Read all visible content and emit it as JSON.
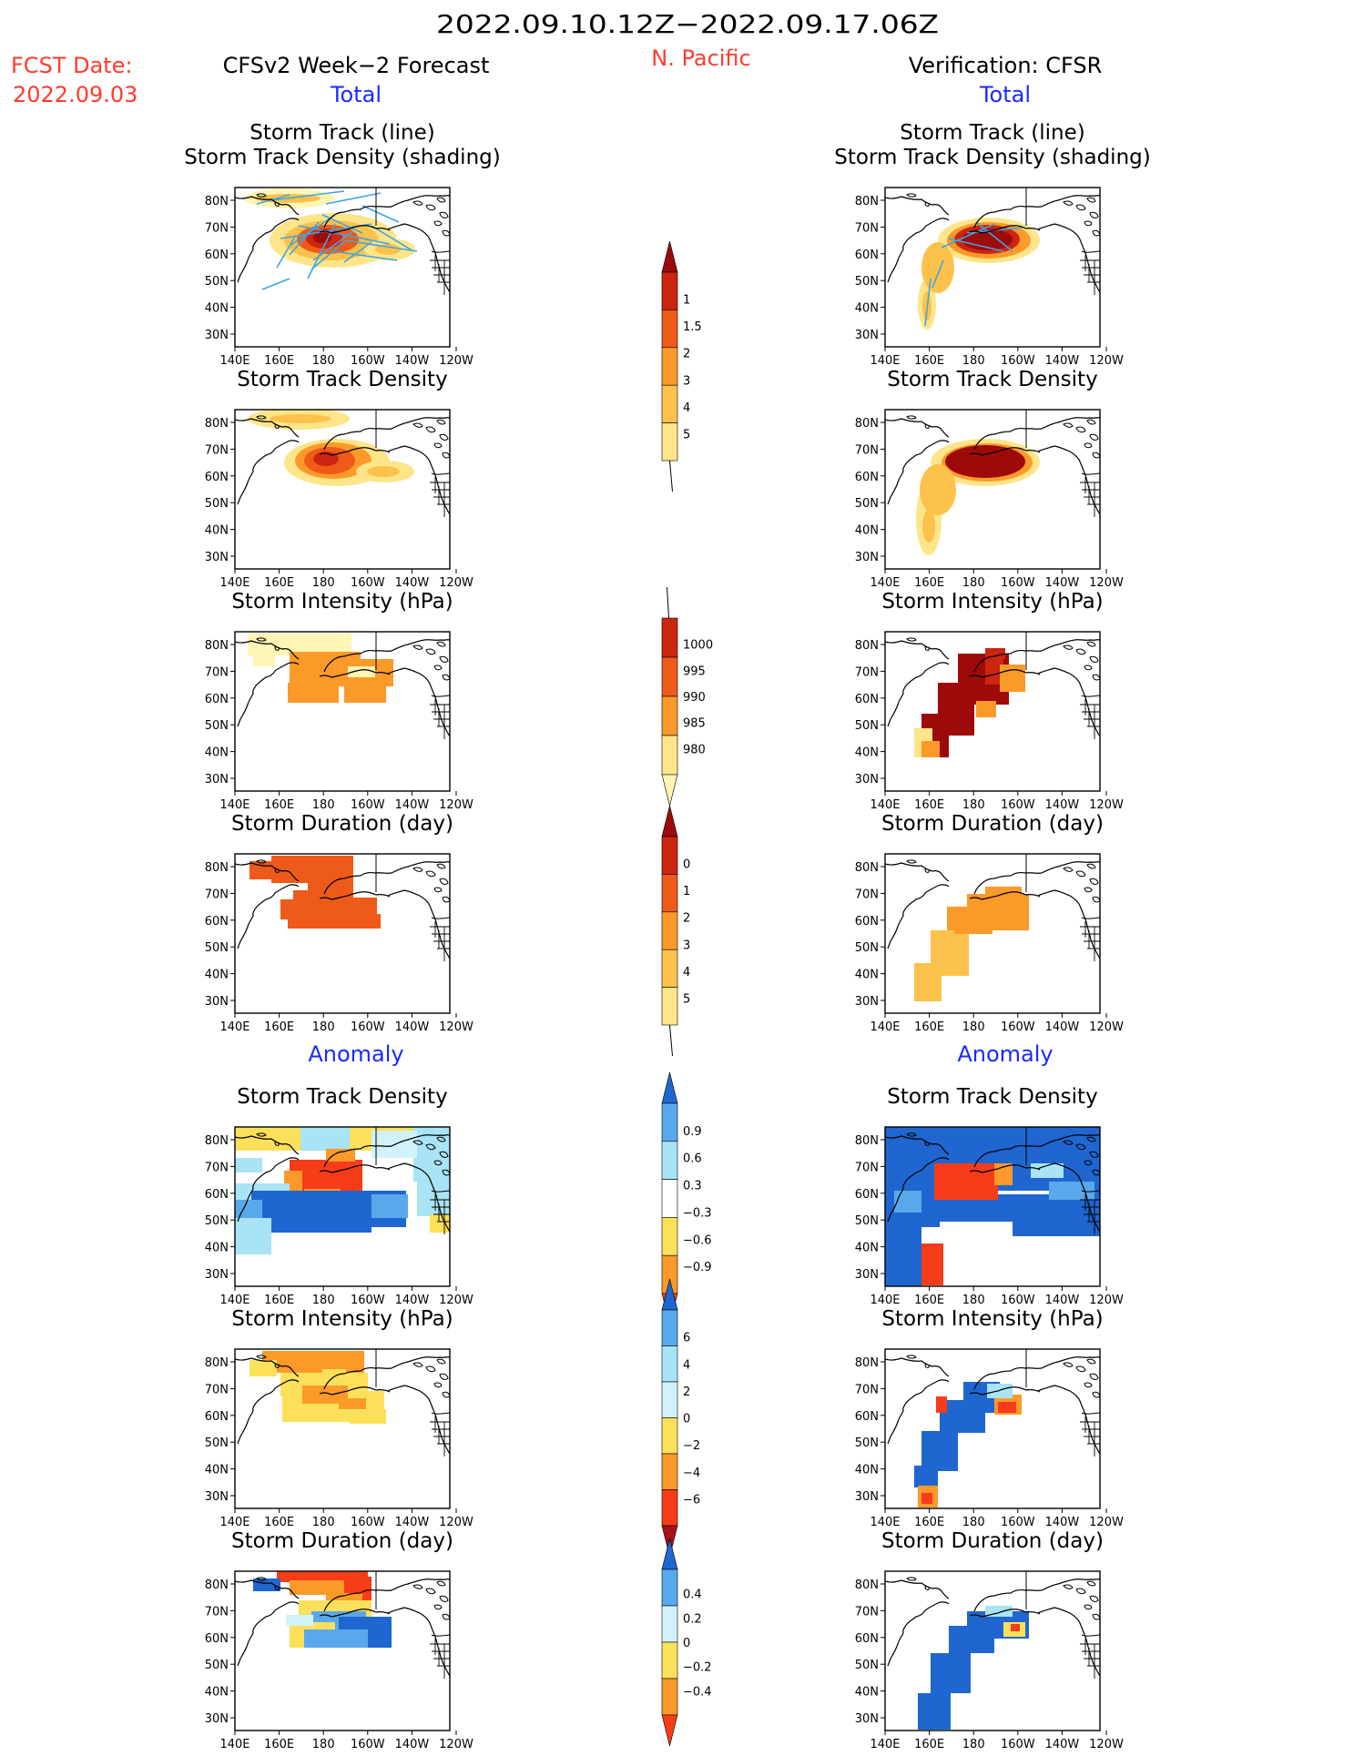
{
  "header": {
    "period": "2022.09.10.12Z−2022.09.17.06Z",
    "fcst_label": "FCST Date:",
    "fcst_date": "2022.09.03",
    "left_title": "CFSv2 Week−2 Forecast",
    "region": "N. Pacific",
    "right_title": "Verification: CFSR",
    "total_label": "Total",
    "anomaly_label": "Anomaly"
  },
  "axes": {
    "lat_labels": [
      "80N",
      "70N",
      "60N",
      "50N",
      "40N",
      "30N"
    ],
    "lon_labels": [
      "140E",
      "160E",
      "180",
      "160W",
      "140W",
      "120W"
    ]
  },
  "panels": {
    "storm_track": {
      "title1": "Storm Track (line)",
      "title2": "Storm Track Density (shading)"
    },
    "density": {
      "title": "Storm Track Density"
    },
    "intensity": {
      "title": "Storm Intensity (hPa)"
    },
    "duration": {
      "title": "Storm Duration (day)"
    },
    "anom_density": {
      "title": "Storm Track Density"
    },
    "anom_intensity": {
      "title": "Storm Intensity (hPa)"
    },
    "anom_duration": {
      "title": "Storm Duration (day)"
    }
  },
  "colorbars": {
    "density": {
      "labels": [
        "1",
        "1.5",
        "2",
        "3",
        "4",
        "5"
      ],
      "colors": [
        "#fff5b4",
        "#fee58a",
        "#fdc24c",
        "#fb9a29",
        "#ee5a19",
        "#cc2510",
        "#9e0a0a"
      ]
    },
    "intensity": {
      "labels": [
        "1000",
        "995",
        "990",
        "985",
        "980"
      ],
      "colors": [
        "#fff5b4",
        "#fee58a",
        "#fb9a29",
        "#ee5a19",
        "#cc2510",
        "#9e0a0a"
      ]
    },
    "duration": {
      "labels": [
        "0",
        "1",
        "2",
        "3",
        "4",
        "5"
      ],
      "colors": [
        "#fff5b4",
        "#fee58a",
        "#fdc24c",
        "#fb9a29",
        "#ee5a19",
        "#cc2510",
        "#9e0a0a"
      ]
    },
    "anom_density": {
      "labels": [
        "0.9",
        "0.6",
        "0.3",
        "−0.3",
        "−0.6",
        "−0.9"
      ],
      "colors": [
        "#f73c1a",
        "#fb9a29",
        "#fde05a",
        "#ffffff",
        "#a8e4f5",
        "#5aa8ec",
        "#1f66d0"
      ]
    },
    "anom_intensity": {
      "labels": [
        "6",
        "4",
        "2",
        "0",
        "−2",
        "−4",
        "−6"
      ],
      "colors": [
        "#a8101a",
        "#f73c1a",
        "#fb9a29",
        "#fde05a",
        "#d2f2fb",
        "#a8e4f5",
        "#5aa8ec",
        "#1f66d0"
      ]
    },
    "anom_duration": {
      "labels": [
        "0.4",
        "0.2",
        "0",
        "−0.2",
        "−0.4"
      ],
      "colors": [
        "#f73c1a",
        "#fb9a29",
        "#fde05a",
        "#d2f2fb",
        "#5aa8ec",
        "#1f66d0"
      ]
    }
  }
}
